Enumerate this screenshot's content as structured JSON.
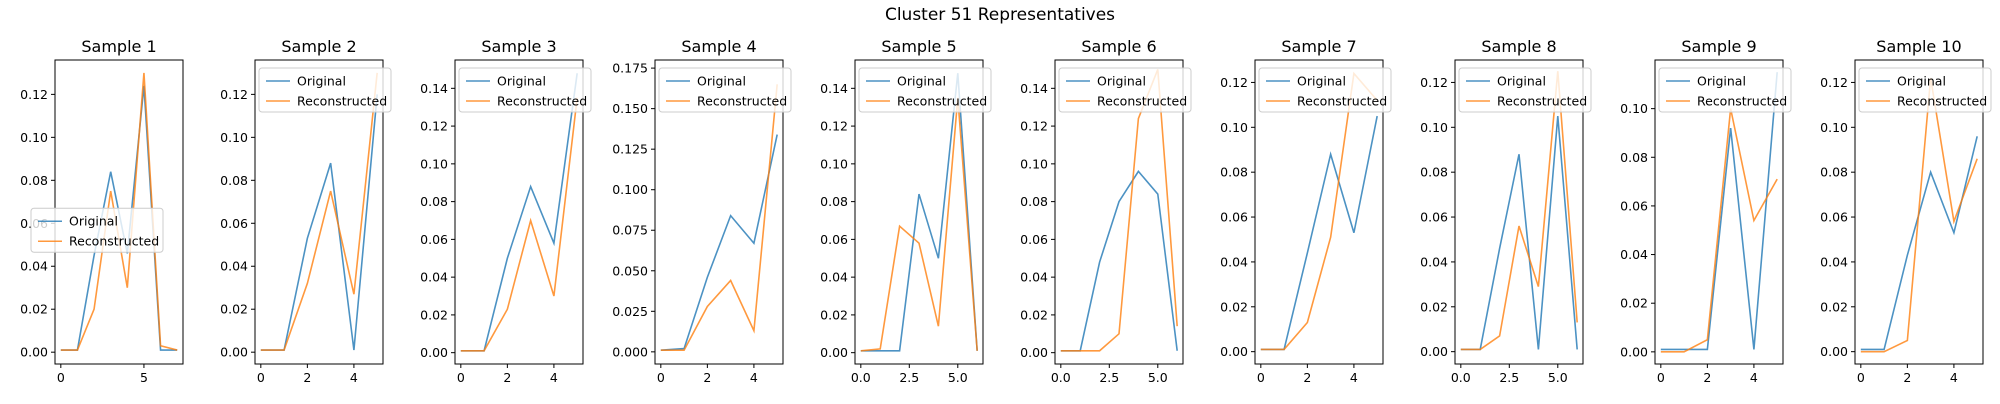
{
  "figure": {
    "suptitle": "Cluster 51 Representatives"
  },
  "colors": {
    "original": "#1f77b4",
    "reconstructed": "#ff7f0e"
  },
  "legend_labels": [
    "Original",
    "Reconstructed"
  ],
  "chart_data": [
    {
      "type": "line",
      "title": "Sample 1",
      "x": [
        0,
        1,
        2,
        3,
        4,
        5,
        6,
        7
      ],
      "series": [
        {
          "name": "Original",
          "values": [
            0.001,
            0.001,
            0.045,
            0.084,
            0.046,
            0.124,
            0.001,
            0.001
          ]
        },
        {
          "name": "Reconstructed",
          "values": [
            0.001,
            0.001,
            0.02,
            0.075,
            0.03,
            0.13,
            0.003,
            0.001
          ]
        }
      ],
      "xlim": [
        -0.35,
        7.35
      ],
      "ylim": [
        -0.0055,
        0.136
      ],
      "xticks": [
        0,
        5
      ],
      "xtick_labels": [
        "0",
        "5"
      ],
      "yticks": [
        0,
        0.02,
        0.04,
        0.06,
        0.08,
        0.1,
        0.12
      ],
      "ytick_labels": [
        "0.00",
        "0.02",
        "0.04",
        "0.06",
        "0.08",
        "0.10",
        "0.12"
      ],
      "legend": "center-left"
    },
    {
      "type": "line",
      "title": "Sample 2",
      "x": [
        0,
        1,
        2,
        3,
        4,
        5
      ],
      "series": [
        {
          "name": "Original",
          "values": [
            0.001,
            0.001,
            0.053,
            0.088,
            0.001,
            0.12
          ]
        },
        {
          "name": "Reconstructed",
          "values": [
            0.001,
            0.001,
            0.032,
            0.075,
            0.027,
            0.13
          ]
        }
      ],
      "xlim": [
        -0.25,
        5.25
      ],
      "ylim": [
        -0.0055,
        0.136
      ],
      "xticks": [
        0,
        2,
        4
      ],
      "xtick_labels": [
        "0",
        "2",
        "4"
      ],
      "yticks": [
        0,
        0.02,
        0.04,
        0.06,
        0.08,
        0.1,
        0.12
      ],
      "ytick_labels": [
        "0.00",
        "0.02",
        "0.04",
        "0.06",
        "0.08",
        "0.10",
        "0.12"
      ],
      "legend": "top-center"
    },
    {
      "type": "line",
      "title": "Sample 3",
      "x": [
        0,
        1,
        2,
        3,
        4,
        5
      ],
      "series": [
        {
          "name": "Original",
          "values": [
            0.001,
            0.001,
            0.05,
            0.088,
            0.058,
            0.148
          ]
        },
        {
          "name": "Reconstructed",
          "values": [
            0.001,
            0.001,
            0.023,
            0.07,
            0.03,
            0.135
          ]
        }
      ],
      "xlim": [
        -0.25,
        5.25
      ],
      "ylim": [
        -0.006,
        0.155
      ],
      "xticks": [
        0,
        2,
        4
      ],
      "xtick_labels": [
        "0",
        "2",
        "4"
      ],
      "yticks": [
        0,
        0.02,
        0.04,
        0.06,
        0.08,
        0.1,
        0.12,
        0.14
      ],
      "ytick_labels": [
        "0.00",
        "0.02",
        "0.04",
        "0.06",
        "0.08",
        "0.10",
        "0.12",
        "0.14"
      ],
      "legend": "top-center"
    },
    {
      "type": "line",
      "title": "Sample 4",
      "x": [
        0,
        1,
        2,
        3,
        4,
        5
      ],
      "series": [
        {
          "name": "Original",
          "values": [
            0.001,
            0.002,
            0.046,
            0.084,
            0.067,
            0.134
          ]
        },
        {
          "name": "Reconstructed",
          "values": [
            0.001,
            0.001,
            0.028,
            0.044,
            0.013,
            0.165
          ]
        }
      ],
      "xlim": [
        -0.25,
        5.25
      ],
      "ylim": [
        -0.0075,
        0.18
      ],
      "xticks": [
        0,
        2,
        4
      ],
      "xtick_labels": [
        "0",
        "2",
        "4"
      ],
      "yticks": [
        0,
        0.025,
        0.05,
        0.075,
        0.1,
        0.125,
        0.15,
        0.175
      ],
      "ytick_labels": [
        "0.000",
        "0.025",
        "0.050",
        "0.075",
        "0.100",
        "0.125",
        "0.150",
        "0.175"
      ],
      "legend": "top-center"
    },
    {
      "type": "line",
      "title": "Sample 5",
      "x": [
        0,
        1,
        2,
        3,
        4,
        5,
        6
      ],
      "series": [
        {
          "name": "Original",
          "values": [
            0.001,
            0.001,
            0.001,
            0.084,
            0.05,
            0.148,
            0.001
          ]
        },
        {
          "name": "Reconstructed",
          "values": [
            0.001,
            0.002,
            0.067,
            0.058,
            0.014,
            0.135,
            0.001
          ]
        }
      ],
      "xlim": [
        -0.3,
        6.3
      ],
      "ylim": [
        -0.006,
        0.155
      ],
      "xticks": [
        0,
        2.5,
        5
      ],
      "xtick_labels": [
        "0.0",
        "2.5",
        "5.0"
      ],
      "yticks": [
        0,
        0.02,
        0.04,
        0.06,
        0.08,
        0.1,
        0.12,
        0.14
      ],
      "ytick_labels": [
        "0.00",
        "0.02",
        "0.04",
        "0.06",
        "0.08",
        "0.10",
        "0.12",
        "0.14"
      ],
      "legend": "top-center"
    },
    {
      "type": "line",
      "title": "Sample 6",
      "x": [
        0,
        1,
        2,
        3,
        4,
        5,
        6
      ],
      "series": [
        {
          "name": "Original",
          "values": [
            0.001,
            0.001,
            0.048,
            0.08,
            0.096,
            0.084,
            0.001
          ]
        },
        {
          "name": "Reconstructed",
          "values": [
            0.001,
            0.001,
            0.001,
            0.01,
            0.124,
            0.15,
            0.014
          ]
        }
      ],
      "xlim": [
        -0.3,
        6.3
      ],
      "ylim": [
        -0.006,
        0.155
      ],
      "xticks": [
        0,
        2.5,
        5
      ],
      "xtick_labels": [
        "0.0",
        "2.5",
        "5.0"
      ],
      "yticks": [
        0,
        0.02,
        0.04,
        0.06,
        0.08,
        0.1,
        0.12,
        0.14
      ],
      "ytick_labels": [
        "0.00",
        "0.02",
        "0.04",
        "0.06",
        "0.08",
        "0.10",
        "0.12",
        "0.14"
      ],
      "legend": "top-center"
    },
    {
      "type": "line",
      "title": "Sample 7",
      "x": [
        0,
        1,
        2,
        3,
        4,
        5
      ],
      "series": [
        {
          "name": "Original",
          "values": [
            0.001,
            0.001,
            0.044,
            0.088,
            0.053,
            0.105
          ]
        },
        {
          "name": "Reconstructed",
          "values": [
            0.001,
            0.001,
            0.013,
            0.051,
            0.124,
            0.112
          ]
        }
      ],
      "xlim": [
        -0.25,
        5.25
      ],
      "ylim": [
        -0.0055,
        0.13
      ],
      "xticks": [
        0,
        2,
        4
      ],
      "xtick_labels": [
        "0",
        "2",
        "4"
      ],
      "yticks": [
        0,
        0.02,
        0.04,
        0.06,
        0.08,
        0.1,
        0.12
      ],
      "ytick_labels": [
        "0.00",
        "0.02",
        "0.04",
        "0.06",
        "0.08",
        "0.10",
        "0.12"
      ],
      "legend": "top-center"
    },
    {
      "type": "line",
      "title": "Sample 8",
      "x": [
        0,
        1,
        2,
        3,
        4,
        5,
        6
      ],
      "series": [
        {
          "name": "Original",
          "values": [
            0.001,
            0.001,
            0.046,
            0.088,
            0.001,
            0.105,
            0.001
          ]
        },
        {
          "name": "Reconstructed",
          "values": [
            0.001,
            0.001,
            0.007,
            0.056,
            0.029,
            0.125,
            0.013
          ]
        }
      ],
      "xlim": [
        -0.3,
        6.3
      ],
      "ylim": [
        -0.0055,
        0.13
      ],
      "xticks": [
        0,
        2.5,
        5
      ],
      "xtick_labels": [
        "0.0",
        "2.5",
        "5.0"
      ],
      "yticks": [
        0,
        0.02,
        0.04,
        0.06,
        0.08,
        0.1,
        0.12
      ],
      "ytick_labels": [
        "0.00",
        "0.02",
        "0.04",
        "0.06",
        "0.08",
        "0.10",
        "0.12"
      ],
      "legend": "top-center"
    },
    {
      "type": "line",
      "title": "Sample 9",
      "x": [
        0,
        1,
        2,
        3,
        4,
        5
      ],
      "series": [
        {
          "name": "Original",
          "values": [
            0.001,
            0.001,
            0.001,
            0.092,
            0.001,
            0.115
          ]
        },
        {
          "name": "Reconstructed",
          "values": [
            0.0,
            0.0,
            0.005,
            0.1,
            0.054,
            0.071
          ]
        }
      ],
      "xlim": [
        -0.25,
        5.25
      ],
      "ylim": [
        -0.005,
        0.12
      ],
      "xticks": [
        0,
        2,
        4
      ],
      "xtick_labels": [
        "0",
        "2",
        "4"
      ],
      "yticks": [
        0,
        0.02,
        0.04,
        0.06,
        0.08,
        0.1
      ],
      "ytick_labels": [
        "0.00",
        "0.02",
        "0.04",
        "0.06",
        "0.08",
        "0.10"
      ],
      "legend": "top-center"
    },
    {
      "type": "line",
      "title": "Sample 10",
      "x": [
        0,
        1,
        2,
        3,
        4,
        5
      ],
      "series": [
        {
          "name": "Original",
          "values": [
            0.001,
            0.001,
            0.043,
            0.08,
            0.053,
            0.096
          ]
        },
        {
          "name": "Reconstructed",
          "values": [
            0.0,
            0.0,
            0.005,
            0.122,
            0.058,
            0.086
          ]
        }
      ],
      "xlim": [
        -0.25,
        5.25
      ],
      "ylim": [
        -0.0055,
        0.13
      ],
      "xticks": [
        0,
        2,
        4
      ],
      "xtick_labels": [
        "0",
        "2",
        "4"
      ],
      "yticks": [
        0,
        0.02,
        0.04,
        0.06,
        0.08,
        0.1,
        0.12
      ],
      "ytick_labels": [
        "0.00",
        "0.02",
        "0.04",
        "0.06",
        "0.08",
        "0.10",
        "0.12"
      ],
      "legend": "top-center"
    }
  ]
}
